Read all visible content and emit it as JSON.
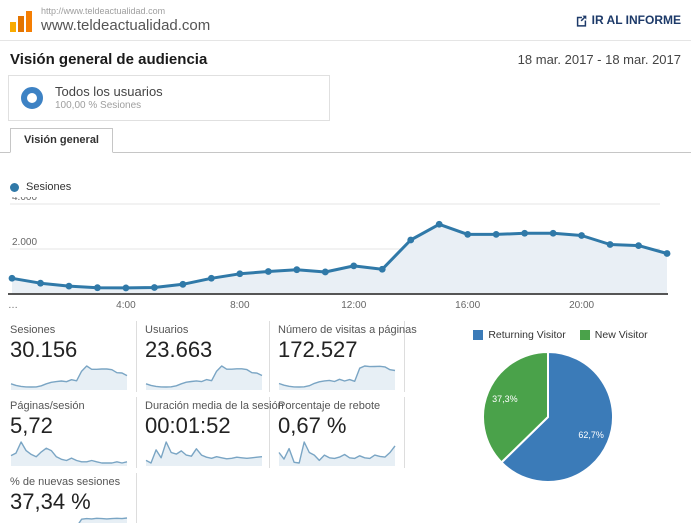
{
  "header": {
    "site_url_small": "http://www.teldeactualidad.com",
    "site_domain": "www.teldeactualidad.com",
    "report_link": "IR AL INFORME"
  },
  "page": {
    "title": "Visión general de audiencia",
    "date_range": "18 mar. 2017 - 18 mar. 2017"
  },
  "segment": {
    "name": "Todos los usuarios",
    "detail": "100,00 % Sesiones"
  },
  "tabs": [
    {
      "label": "Visión general",
      "active": true
    }
  ],
  "colors": {
    "line": "#3079a8",
    "line_fill": "#e9eff5",
    "spark_line": "#7aa5c4",
    "spark_fill": "#e7eff5",
    "pie_blue": "#3b7bb8",
    "pie_green": "#4aa24a",
    "accent_navy": "#1d3a69",
    "donut_blue": "#3d82c4",
    "logo_orange": "#e37400"
  },
  "chart_data": [
    {
      "type": "area",
      "title": "Sesiones",
      "legend": [
        "Sesiones"
      ],
      "x_unit": "hour of day",
      "x": [
        0,
        1,
        2,
        3,
        4,
        5,
        6,
        7,
        8,
        9,
        10,
        11,
        12,
        13,
        14,
        15,
        16,
        17,
        18,
        19,
        20,
        21,
        22,
        23
      ],
      "values": [
        700,
        480,
        350,
        280,
        270,
        290,
        430,
        700,
        900,
        1000,
        1080,
        980,
        1250,
        1100,
        2400,
        3100,
        2650,
        2650,
        2700,
        2700,
        2600,
        2200,
        2150,
        1800
      ],
      "ylim": [
        0,
        4400
      ],
      "y_ticks": [
        {
          "label": "2.000",
          "value": 2000
        },
        {
          "label": "4.000",
          "value": 4000
        }
      ],
      "x_tick_labels": [
        {
          "label": "…",
          "hour": 0
        },
        {
          "label": "4:00",
          "hour": 4
        },
        {
          "label": "8:00",
          "hour": 8
        },
        {
          "label": "12:00",
          "hour": 12
        },
        {
          "label": "16:00",
          "hour": 16
        },
        {
          "label": "20:00",
          "hour": 20
        }
      ],
      "grid": true,
      "legend_position": "top-left"
    },
    {
      "type": "pie",
      "labels": [
        "Returning Visitor",
        "New Visitor"
      ],
      "values": [
        62.7,
        37.3
      ],
      "value_labels": [
        "62,7%",
        "37,3%"
      ],
      "colors": [
        "#3b7bb8",
        "#4aa24a"
      ],
      "legend_position": "top"
    }
  ],
  "metrics": {
    "rows": [
      {
        "cards": [
          {
            "label": "Sesiones",
            "value": "30.156",
            "spark": [
              700,
              480,
              350,
              280,
              270,
              290,
              430,
              700,
              900,
              1000,
              1080,
              980,
              1250,
              1100,
              2400,
              3100,
              2650,
              2650,
              2700,
              2700,
              2600,
              2200,
              2150,
              1800
            ]
          },
          {
            "label": "Usuarios",
            "value": "23.663",
            "spark": [
              650,
              450,
              330,
              260,
              250,
              270,
              400,
              650,
              850,
              950,
              1020,
              930,
              1180,
              1050,
              2250,
              2900,
              2500,
              2500,
              2550,
              2550,
              2450,
              2050,
              2000,
              1700
            ]
          },
          {
            "label": "Número de visitas a páginas",
            "value": "172.527",
            "spark": [
              3900,
              2800,
              2100,
              1700,
              1650,
              1750,
              2500,
              4000,
              5000,
              5600,
              5900,
              5200,
              6600,
              5500,
              6400,
              5300,
              13800,
              15200,
              14800,
              14900,
              15000,
              14600,
              12800,
              12300
            ]
          }
        ]
      },
      {
        "cards": [
          {
            "label": "Páginas/sesión",
            "value": "5,72",
            "spark": [
              5.7,
              5.9,
              6.8,
              6.1,
              5.8,
              5.6,
              6.0,
              6.3,
              6.1,
              5.6,
              5.4,
              5.3,
              5.5,
              5.3,
              5.2,
              5.2,
              5.3,
              5.2,
              5.1,
              5.1,
              5.1,
              5.2,
              5.1,
              5.2
            ]
          },
          {
            "label": "Duración media de la sesión",
            "value": "00:01:52",
            "spark": [
              100,
              95,
              120,
              105,
              135,
              115,
              112,
              118,
              110,
              108,
              122,
              110,
              106,
              104,
              107,
              105,
              103,
              104,
              106,
              105,
              104,
              105,
              106,
              107
            ]
          },
          {
            "label": "Porcentaje de rebote",
            "value": "0,67 %",
            "spark": [
              0.9,
              0.4,
              1.2,
              0.15,
              0.1,
              1.7,
              0.9,
              0.7,
              0.3,
              0.7,
              0.5,
              0.45,
              0.55,
              0.75,
              0.5,
              0.45,
              0.65,
              0.5,
              0.45,
              0.7,
              0.6,
              0.55,
              0.9,
              1.4
            ]
          }
        ]
      },
      {
        "cards": [
          {
            "label": "% de nuevas sesiones",
            "value": "37,34 %",
            "spark": [
              36,
              34.5,
              35.5,
              33.5,
              34,
              35,
              34,
              35.5,
              34.5,
              36,
              35,
              36.5,
              36,
              37.5,
              40,
              40.2,
              40.1,
              40.3,
              40.2,
              40.1,
              40.2,
              40.3,
              40.2,
              40.4
            ]
          }
        ]
      }
    ]
  }
}
